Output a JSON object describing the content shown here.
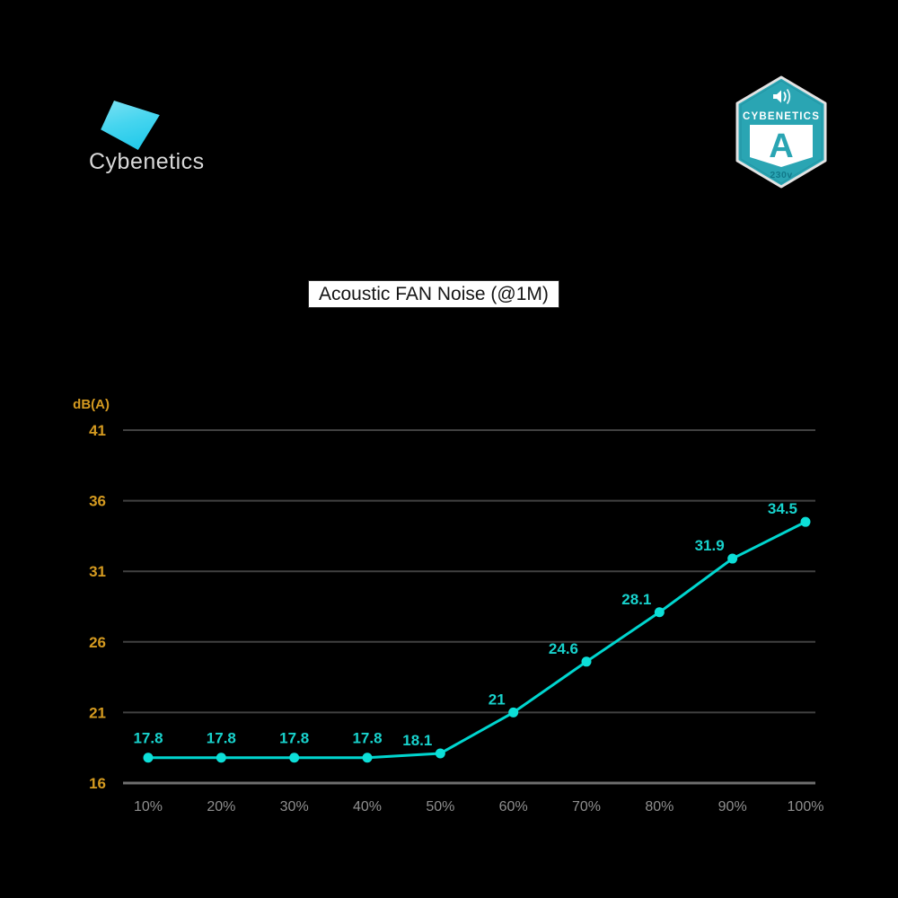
{
  "page": {
    "background": "#000000"
  },
  "logo": {
    "text": "Cybenetics",
    "mark": "cyan-tilted-quad",
    "mark_colors": {
      "light": "#8ae4f4",
      "dark": "#0fc3e7"
    },
    "text_color": "#d9d9d9"
  },
  "badge": {
    "icon": "speaker-volume-icon",
    "brand": "CYBENETICS",
    "grade": "A",
    "voltage": "230v",
    "colors": {
      "teal": "#2aa5b3",
      "teal_dark": "#1d8897",
      "border": "#e3e3e3",
      "panel": "#ffffff",
      "voltage_text": "#11798a"
    }
  },
  "title": {
    "text": "Acoustic FAN Noise (@1M)"
  },
  "chart_data": {
    "type": "line",
    "title": "Acoustic FAN Noise (@1M)",
    "x": [
      "10%",
      "20%",
      "30%",
      "40%",
      "50%",
      "60%",
      "70%",
      "80%",
      "90%",
      "100%"
    ],
    "values": [
      17.8,
      17.8,
      17.8,
      17.8,
      18.1,
      21,
      24.6,
      28.1,
      31.9,
      34.5
    ],
    "series_name": "Acoustic fan noise at 1 m",
    "xlabel": "",
    "ylabel": "dB(A)",
    "yticks": [
      16,
      21,
      26,
      31,
      36,
      41
    ],
    "ylim": [
      16,
      41
    ],
    "grid": true,
    "legend": false,
    "colors": {
      "line": "#00d6cf",
      "marker": "#0ddfd8",
      "data_label": "#18d2cc",
      "axis_label": "#d49a20",
      "tick_label": "#8f8f8f",
      "grid_line": "#414141",
      "axis_line": "#6e6e6e",
      "background": "#000000"
    }
  }
}
